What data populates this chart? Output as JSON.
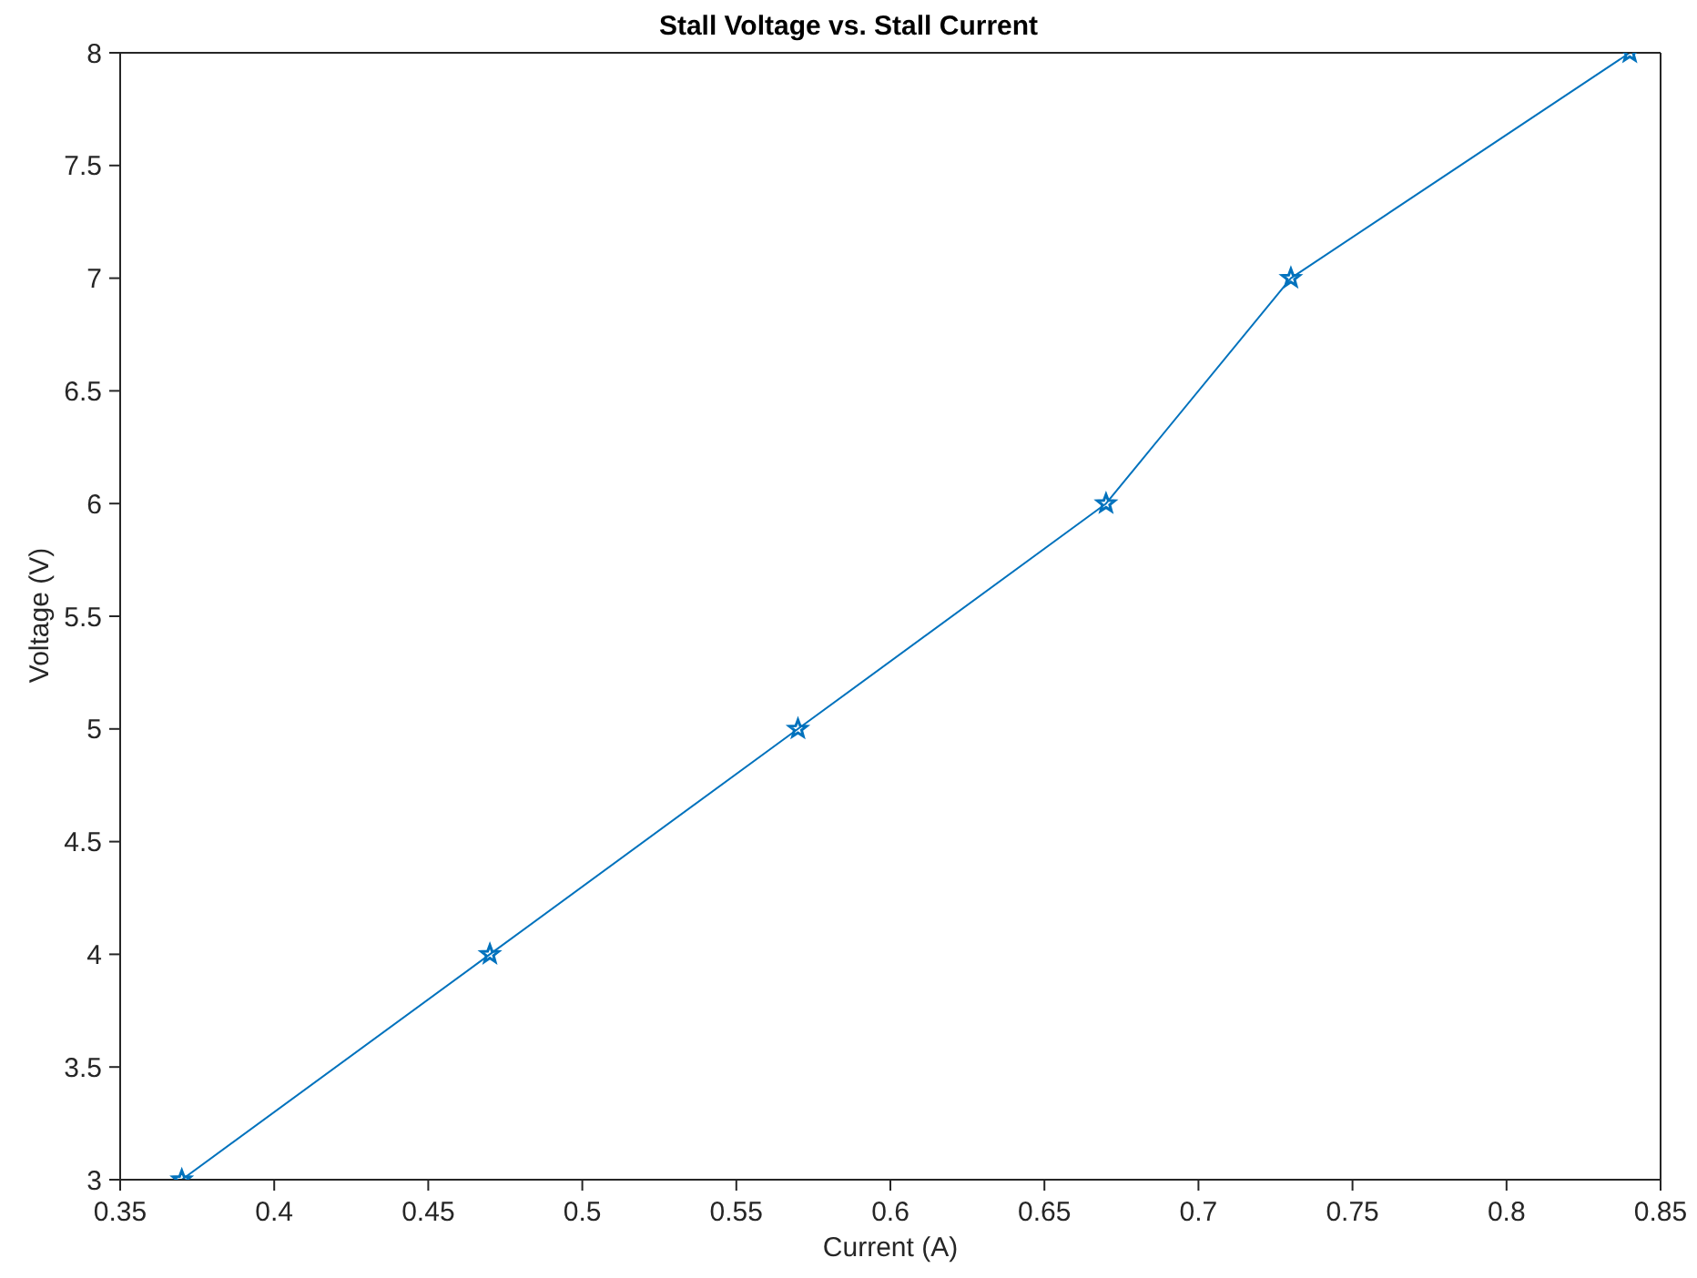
{
  "chart_data": {
    "type": "line",
    "title": "Stall Voltage vs. Stall Current",
    "xlabel": "Current (A)",
    "ylabel": "Voltage (V)",
    "x": [
      0.37,
      0.47,
      0.57,
      0.67,
      0.73,
      0.84
    ],
    "series": [
      {
        "color": "#0072bd",
        "values": [
          3,
          4,
          5,
          6,
          7,
          8
        ]
      }
    ],
    "xlim": [
      0.35,
      0.85
    ],
    "xticks": [
      0.35,
      0.4,
      0.45,
      0.5,
      0.55,
      0.6,
      0.65,
      0.7,
      0.75,
      0.8,
      0.85
    ],
    "ylim": [
      3,
      8
    ],
    "yticks": [
      3,
      3.5,
      4,
      4.5,
      5,
      5.5,
      6,
      6.5,
      7,
      7.5,
      8
    ],
    "grid": false,
    "legend": false,
    "marker": "star",
    "line_style": "solid"
  }
}
